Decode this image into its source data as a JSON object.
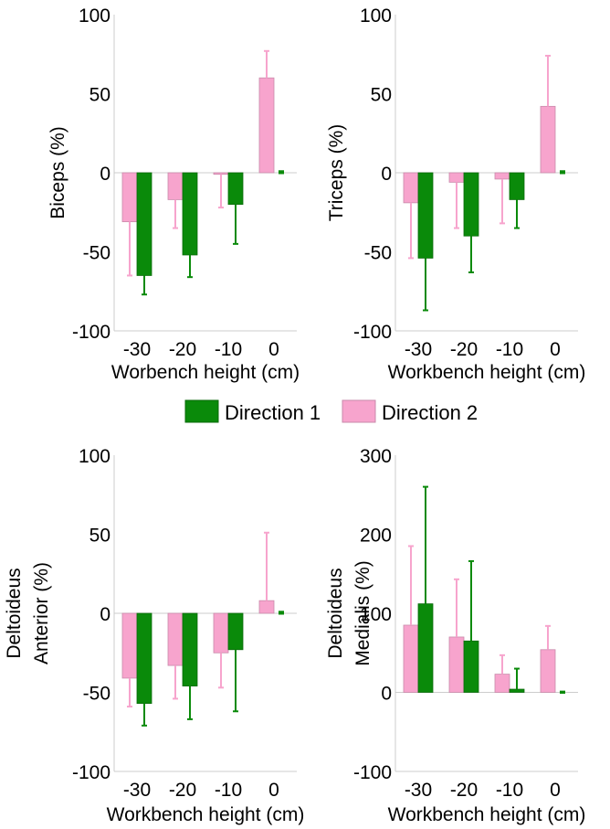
{
  "colors": {
    "direction1": "#0a8a0a",
    "direction1_stroke": "#0a6a0a",
    "direction2": "#f7a4cd",
    "direction2_stroke": "#c98aab",
    "zero_line": "#cccccc",
    "axis": "#cccccc"
  },
  "legend": {
    "placement": "center",
    "entries": [
      "Direction 1",
      "Direction 2"
    ]
  },
  "chart_data": [
    {
      "type": "bar",
      "categories": [
        "-30",
        "-20",
        "-10",
        "0"
      ],
      "xlabel": "Worbench height (cm)",
      "ylabel": "Biceps (%)",
      "ylim": [
        -100,
        100
      ],
      "yticks": [
        "-100",
        "-50",
        "0",
        "50",
        "100"
      ],
      "series": [
        {
          "name": "Direction 2",
          "values": [
            -31,
            -17,
            -1,
            60
          ],
          "errors": [
            34,
            18,
            21,
            17
          ]
        },
        {
          "name": "Direction 1",
          "values": [
            -65,
            -52,
            -20,
            0
          ],
          "errors": [
            12,
            14,
            25,
            1
          ]
        }
      ]
    },
    {
      "type": "bar",
      "categories": [
        "-30",
        "-20",
        "-10",
        "0"
      ],
      "xlabel": "Workbench height (cm)",
      "ylabel": "Triceps (%)",
      "ylim": [
        -100,
        100
      ],
      "yticks": [
        "-100",
        "-50",
        "0",
        "50",
        "100"
      ],
      "series": [
        {
          "name": "Direction 2",
          "values": [
            -19,
            -6,
            -4,
            42
          ],
          "errors": [
            35,
            29,
            28,
            32
          ]
        },
        {
          "name": "Direction 1",
          "values": [
            -54,
            -40,
            -17,
            0
          ],
          "errors": [
            33,
            23,
            18,
            1
          ]
        }
      ]
    },
    {
      "type": "bar",
      "categories": [
        "-30",
        "-20",
        "-10",
        "0"
      ],
      "xlabel": "Workbench height (cm)",
      "ylabel_lines": [
        "Deltoideus",
        "Anterior (%)"
      ],
      "ylim": [
        -100,
        100
      ],
      "yticks": [
        "-100",
        "-50",
        "0",
        "50",
        "100"
      ],
      "series": [
        {
          "name": "Direction 2",
          "values": [
            -41,
            -33,
            -25,
            8
          ],
          "errors": [
            18,
            21,
            22,
            43
          ]
        },
        {
          "name": "Direction 1",
          "values": [
            -57,
            -46,
            -23,
            0
          ],
          "errors": [
            14,
            21,
            39,
            1
          ]
        }
      ]
    },
    {
      "type": "bar",
      "categories": [
        "-30",
        "-20",
        "-10",
        "0"
      ],
      "xlabel": "Workbench height (cm)",
      "ylabel_lines": [
        "Deltoideus",
        "Medialis (%)"
      ],
      "ylim": [
        -100,
        300
      ],
      "yticks": [
        "-100",
        "0",
        "100",
        "200",
        "300"
      ],
      "series": [
        {
          "name": "Direction 2",
          "values": [
            85,
            70,
            23,
            54
          ],
          "errors": [
            100,
            73,
            24,
            30
          ]
        },
        {
          "name": "Direction 1",
          "values": [
            112,
            65,
            4,
            0
          ],
          "errors": [
            148,
            101,
            26,
            1
          ]
        }
      ]
    }
  ]
}
